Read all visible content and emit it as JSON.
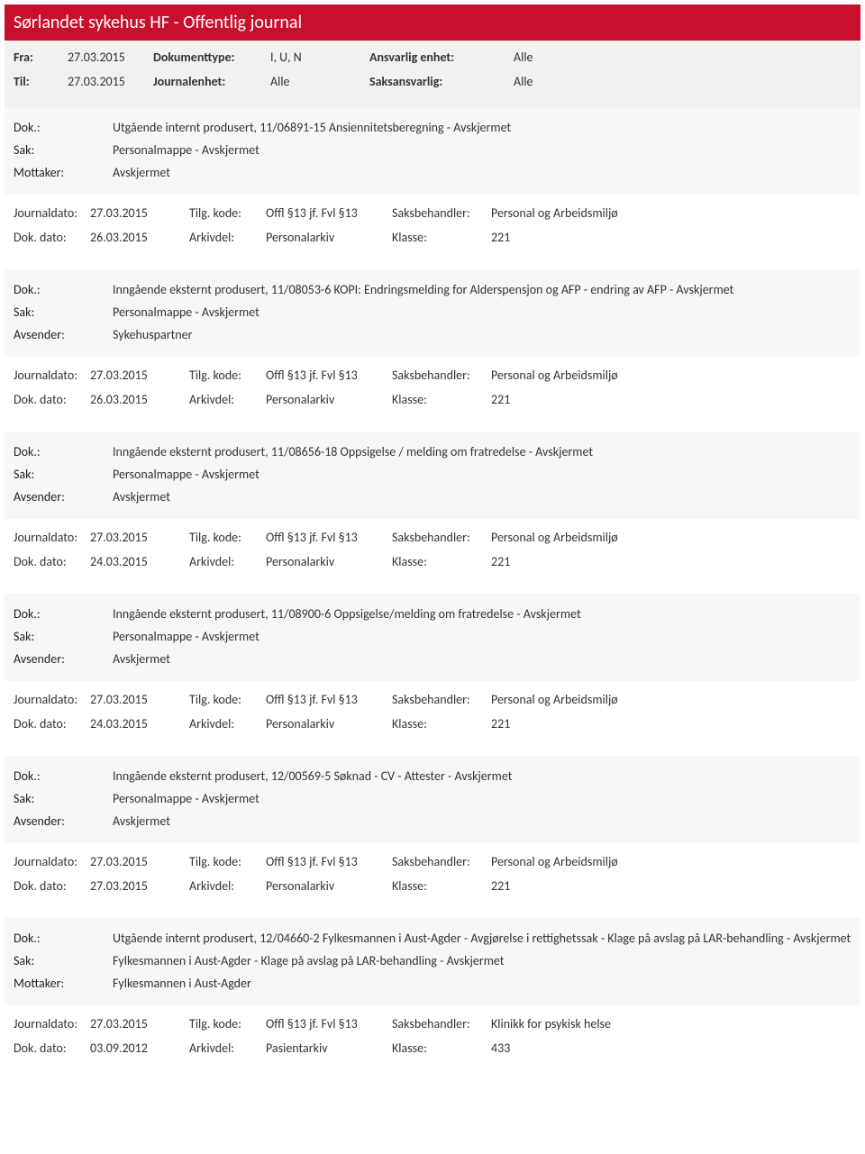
{
  "header": {
    "title": "Sørlandet sykehus HF - Offentlig journal"
  },
  "meta": {
    "fra_label": "Fra:",
    "fra_value": "27.03.2015",
    "til_label": "Til:",
    "til_value": "27.03.2015",
    "doktype_label": "Dokumenttype:",
    "doktype_value": "I, U, N",
    "journalenhet_label": "Journalenhet:",
    "journalenhet_value": "Alle",
    "ansvarlig_label": "Ansvarlig enhet:",
    "ansvarlig_value": "Alle",
    "saksansvarlig_label": "Saksansvarlig:",
    "saksansvarlig_value": "Alle"
  },
  "labels": {
    "dok": "Dok.:",
    "sak": "Sak:",
    "mottaker": "Mottaker:",
    "avsender": "Avsender:",
    "journaldato": "Journaldato:",
    "dokdato": "Dok. dato:",
    "tilgkode": "Tilg. kode:",
    "arkivdel": "Arkivdel:",
    "saksbehandler": "Saksbehandler:",
    "klasse": "Klasse:"
  },
  "entries": [
    {
      "dok": "Utgående internt produsert, 11/06891-15 Ansiennitetsberegning - Avskjermet",
      "sak": "Personalmappe - Avskjermet",
      "party_label": "Mottaker:",
      "party_value": "Avskjermet",
      "journaldato": "27.03.2015",
      "tilgkode": "Offl §13 jf. Fvl §13",
      "saksbehandler": "Personal og Arbeidsmiljø",
      "dokdato": "26.03.2015",
      "arkivdel": "Personalarkiv",
      "klasse": "221"
    },
    {
      "dok": "Inngående eksternt produsert, 11/08053-6 KOPI: Endringsmelding for Alderspensjon og AFP - endring av AFP - Avskjermet",
      "sak": "Personalmappe - Avskjermet",
      "party_label": "Avsender:",
      "party_value": "Sykehuspartner",
      "journaldato": "27.03.2015",
      "tilgkode": "Offl §13 jf. Fvl §13",
      "saksbehandler": "Personal og Arbeidsmiljø",
      "dokdato": "26.03.2015",
      "arkivdel": "Personalarkiv",
      "klasse": "221"
    },
    {
      "dok": "Inngående eksternt produsert, 11/08656-18 Oppsigelse / melding om fratredelse - Avskjermet",
      "sak": "Personalmappe - Avskjermet",
      "party_label": "Avsender:",
      "party_value": "Avskjermet",
      "journaldato": "27.03.2015",
      "tilgkode": "Offl §13 jf. Fvl §13",
      "saksbehandler": "Personal og Arbeidsmiljø",
      "dokdato": "24.03.2015",
      "arkivdel": "Personalarkiv",
      "klasse": "221"
    },
    {
      "dok": "Inngående eksternt produsert, 11/08900-6 Oppsigelse/melding om fratredelse - Avskjermet",
      "sak": "Personalmappe - Avskjermet",
      "party_label": "Avsender:",
      "party_value": "Avskjermet",
      "journaldato": "27.03.2015",
      "tilgkode": "Offl §13 jf. Fvl §13",
      "saksbehandler": "Personal og Arbeidsmiljø",
      "dokdato": "24.03.2015",
      "arkivdel": "Personalarkiv",
      "klasse": "221"
    },
    {
      "dok": "Inngående eksternt produsert, 12/00569-5 Søknad - CV - Attester - Avskjermet",
      "sak": "Personalmappe - Avskjermet",
      "party_label": "Avsender:",
      "party_value": "Avskjermet",
      "journaldato": "27.03.2015",
      "tilgkode": "Offl §13 jf. Fvl §13",
      "saksbehandler": "Personal og Arbeidsmiljø",
      "dokdato": "27.03.2015",
      "arkivdel": "Personalarkiv",
      "klasse": "221"
    },
    {
      "dok": "Utgående internt produsert, 12/04660-2 Fylkesmannen i Aust-Agder - Avgjørelse i rettighetssak - Klage på avslag på LAR-behandling - Avskjermet",
      "sak": "Fylkesmannen i Aust-Agder - Klage på avslag på LAR-behandling - Avskjermet",
      "party_label": "Mottaker:",
      "party_value": "Fylkesmannen i Aust-Agder",
      "journaldato": "27.03.2015",
      "tilgkode": "Offl §13 jf. Fvl §13",
      "saksbehandler": "Klinikk for psykisk helse",
      "dokdato": "03.09.2012",
      "arkivdel": "Pasientarkiv",
      "klasse": "433"
    }
  ]
}
